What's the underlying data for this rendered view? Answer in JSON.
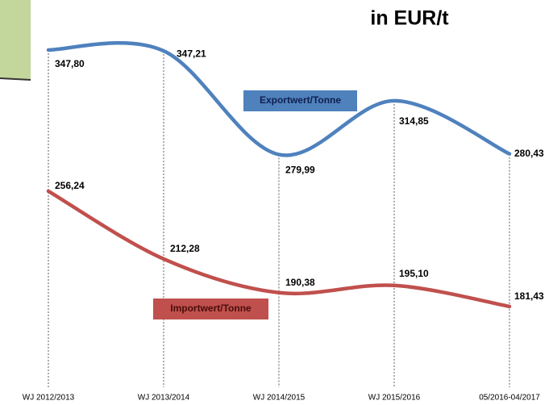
{
  "chart_data": {
    "type": "line",
    "title": "in EUR/t",
    "categories": [
      "WJ 2012/2013",
      "WJ 2013/2014",
      "WJ 2014/2015",
      "WJ 2015/2016",
      "05/2016-04/2017"
    ],
    "series": [
      {
        "name": "Exportwert/Tonne",
        "color": "#4f81bd",
        "values": [
          347.8,
          347.21,
          279.99,
          314.85,
          280.43
        ],
        "value_labels": [
          "347,80",
          "347,21",
          "279,99",
          "314,85",
          "280,43"
        ]
      },
      {
        "name": "Importwert/Tonne",
        "color": "#c0504d",
        "values": [
          256.24,
          212.28,
          190.38,
          195.1,
          181.43
        ],
        "value_labels": [
          "256,24",
          "212,28",
          "190,38",
          "195,10",
          "181,43"
        ]
      }
    ]
  }
}
